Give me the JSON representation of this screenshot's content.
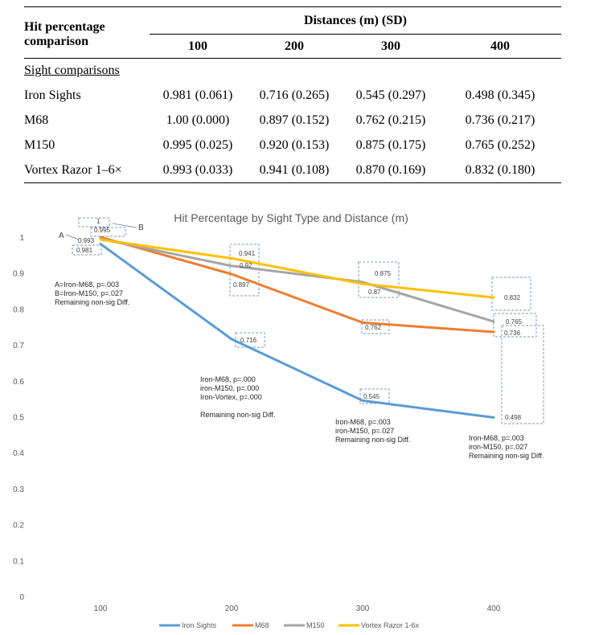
{
  "table": {
    "header_left_line1": "Hit percentage",
    "header_left_line2": "comparison",
    "header_group": "Distances (m) (SD)",
    "distance_headers": [
      "100",
      "200",
      "300",
      "400"
    ],
    "section_label": "Sight comparisons",
    "rows": [
      {
        "label": "Iron Sights",
        "cells": [
          "0.981 (0.061)",
          "0.716 (0.265)",
          "0.545 (0.297)",
          "0.498 (0.345)"
        ]
      },
      {
        "label": "M68",
        "cells": [
          "1.00 (0.000)",
          "0.897 (0.152)",
          "0.762 (0.215)",
          "0.736 (0.217)"
        ]
      },
      {
        "label": "M150",
        "cells": [
          "0.995 (0.025)",
          "0.920 (0.153)",
          "0.875 (0.175)",
          "0.765 (0.252)"
        ]
      },
      {
        "label": "Vortex Razor 1–6×",
        "cells": [
          "0.993 (0.033)",
          "0.941 (0.108)",
          "0.870 (0.169)",
          "0.832 (0.180)"
        ]
      }
    ]
  },
  "chart_data": {
    "type": "line",
    "title": "Hit Percentage by Sight Type and Distance (m)",
    "xlabel": "",
    "ylabel": "",
    "categories": [
      "100",
      "200",
      "300",
      "400"
    ],
    "ylim": [
      0,
      1
    ],
    "yticks": [
      "0",
      "0.1",
      "0.2",
      "0.3",
      "0.4",
      "0.5",
      "0.6",
      "0.7",
      "0.8",
      "0.9",
      "1"
    ],
    "grid": false,
    "legend_position": "bottom",
    "series": [
      {
        "name": "Iron Sights",
        "color": "#5b9bd5",
        "values": [
          0.981,
          0.716,
          0.545,
          0.498
        ]
      },
      {
        "name": "M68",
        "color": "#ed7d31",
        "values": [
          1.0,
          0.897,
          0.762,
          0.736
        ]
      },
      {
        "name": "M150",
        "color": "#a5a5a5",
        "values": [
          0.995,
          0.92,
          0.875,
          0.765
        ]
      },
      {
        "name": "Vortex Razor 1-6x",
        "color": "#ffc000",
        "values": [
          0.993,
          0.941,
          0.87,
          0.832
        ]
      }
    ],
    "data_labels": {
      "d100": [
        "0.993",
        "0.981",
        "0.995",
        "1"
      ],
      "d200": [
        "0.941",
        "0.92",
        "0.897",
        "0.716"
      ],
      "d300": [
        "0.875",
        "0.87",
        "0.762",
        "0.545"
      ],
      "d400": [
        "0.832",
        "0.765",
        "0.736",
        "0.498"
      ]
    },
    "annotations": {
      "marker_a": "A",
      "marker_b": "B",
      "note_100": [
        "A=Iron-M68,  p=.003",
        "B=Iron-M150, p=.027",
        "Remaining non-sig Diff."
      ],
      "note_200": [
        "Iron-M68,   p=.000",
        "iron-M150, p=.000",
        "Iron-Vortex, p=.000",
        "",
        "Remaining non-sig Diff."
      ],
      "note_300": [
        "Iron-M68,   p=.003",
        "iron-M150, p=.027",
        "Remaining non-sig Diff."
      ],
      "note_400": [
        "Iron-M68,   p=.003",
        "iron-M150, p=.027",
        "Remaining non-sig Diff."
      ]
    }
  }
}
